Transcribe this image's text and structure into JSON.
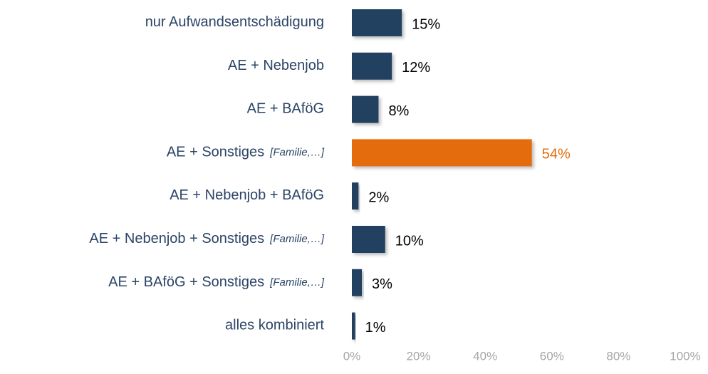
{
  "chart_data": {
    "type": "bar",
    "categories": [
      "nur Aufwandsentschädigung",
      "AE + Nebenjob",
      "AE + BAföG",
      "AE + Sonstiges",
      "AE + Nebenjob + BAföG",
      "AE + Nebenjob + Sonstiges",
      "AE + BAföG + Sonstiges",
      "alles kombiniert"
    ],
    "category_notes": [
      null,
      null,
      null,
      "[Familie,…]",
      null,
      "[Familie,…]",
      "[Familie,…]",
      null
    ],
    "values": [
      15,
      12,
      8,
      54,
      2,
      10,
      3,
      1
    ],
    "value_labels": [
      "15%",
      "12%",
      "8%",
      "54%",
      "2%",
      "10%",
      "3%",
      "1%"
    ],
    "color": "#243f60",
    "highlight_color": "#e46c0a",
    "highlight_index": 3,
    "xlim": [
      0,
      100
    ],
    "xticks": [
      {
        "value": 0,
        "label": "0%"
      },
      {
        "value": 20,
        "label": "20%"
      },
      {
        "value": 40,
        "label": "40%"
      },
      {
        "value": 60,
        "label": "60%"
      },
      {
        "value": 80,
        "label": "80%"
      },
      {
        "value": 100,
        "label": "100%"
      }
    ],
    "grid": false
  }
}
